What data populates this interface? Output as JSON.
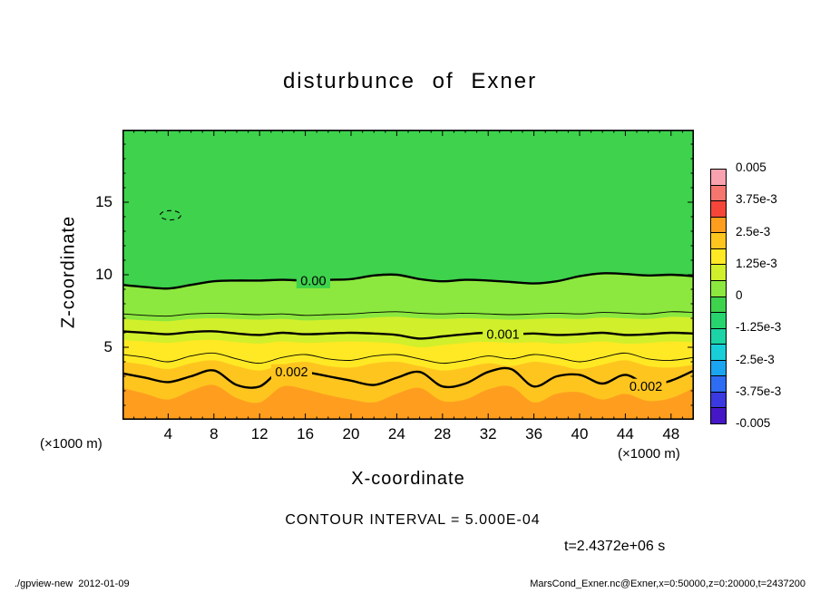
{
  "title": "disturbunce of Exner",
  "axes": {
    "x": {
      "label": "X-coordinate",
      "unit": "(×1000 m)",
      "ticks": [
        4,
        8,
        12,
        16,
        20,
        24,
        28,
        32,
        36,
        40,
        44,
        48
      ]
    },
    "y": {
      "label": "Z-coordinate",
      "unit": "(×1000 m)",
      "ticks": [
        5,
        10,
        15
      ]
    }
  },
  "annotations": {
    "contour_interval": "CONTOUR INTERVAL = 5.000E-04",
    "time": "t=2.4372e+06 s"
  },
  "footer": {
    "left": "./gpview-new  2012-01-09",
    "right": "MarsCond_Exner.nc@Exner,x=0:50000,z=0:20000,t=2437200"
  },
  "chart_data": {
    "type": "contour",
    "title": "disturbunce of Exner",
    "xlabel": "X-coordinate",
    "ylabel": "Z-coordinate",
    "x_unit": "×1000 m",
    "y_unit": "×1000 m",
    "xlim": [
      0,
      50
    ],
    "ylim": [
      0,
      20
    ],
    "x_ticks": [
      4,
      8,
      12,
      16,
      20,
      24,
      28,
      32,
      36,
      40,
      44,
      48
    ],
    "y_ticks": [
      5,
      10,
      15
    ],
    "contour_interval": 0.0005,
    "background_color": "#3ed24d",
    "x": [
      0,
      2,
      4,
      6,
      8,
      10,
      12,
      14,
      16,
      18,
      20,
      22,
      24,
      26,
      28,
      30,
      32,
      34,
      36,
      38,
      40,
      42,
      44,
      46,
      48,
      50
    ],
    "bands": [
      {
        "min_value": 0.0,
        "color": "#8ce83e",
        "z": [
          9.3,
          9.15,
          9.05,
          9.3,
          9.55,
          9.6,
          9.6,
          9.65,
          9.6,
          9.65,
          9.7,
          9.95,
          10.0,
          9.7,
          9.55,
          9.65,
          9.6,
          9.5,
          9.4,
          9.55,
          9.9,
          10.1,
          10.05,
          9.95,
          10.0,
          9.9
        ]
      },
      {
        "min_value": 0.000625,
        "color": "#d2ef2b",
        "z": [
          6.95,
          6.85,
          6.8,
          6.95,
          7.0,
          6.95,
          6.9,
          6.95,
          6.85,
          6.9,
          6.95,
          7.05,
          7.1,
          7.0,
          6.95,
          7.0,
          6.95,
          6.9,
          6.95,
          7.0,
          6.95,
          7.05,
          7.0,
          6.95,
          7.1,
          7.05
        ]
      },
      {
        "min_value": 0.00125,
        "color": "#ffe924",
        "z": [
          5.5,
          5.4,
          5.3,
          5.45,
          5.5,
          5.35,
          5.25,
          5.4,
          5.3,
          5.35,
          5.4,
          5.35,
          5.25,
          5.0,
          5.15,
          5.3,
          5.4,
          5.3,
          5.35,
          5.25,
          5.3,
          5.4,
          5.25,
          5.3,
          5.4,
          5.35
        ]
      },
      {
        "min_value": 0.001875,
        "color": "#ffc51f",
        "z": [
          4.0,
          3.8,
          3.5,
          3.9,
          4.1,
          3.7,
          3.4,
          3.8,
          4.0,
          3.7,
          3.6,
          3.9,
          4.0,
          3.7,
          3.4,
          3.6,
          3.9,
          3.7,
          4.0,
          3.8,
          3.5,
          3.8,
          4.1,
          3.7,
          3.6,
          3.8
        ]
      },
      {
        "min_value": 0.0025,
        "color": "#ff9e1e",
        "z": [
          2.2,
          1.8,
          1.4,
          2.0,
          2.4,
          1.5,
          1.2,
          2.3,
          2.1,
          1.7,
          1.4,
          1.2,
          1.8,
          2.2,
          1.3,
          1.4,
          2.1,
          2.3,
          1.2,
          1.8,
          1.9,
          1.4,
          1.8,
          1.3,
          1.5,
          2.2
        ]
      }
    ],
    "contours": [
      {
        "level": 0.0,
        "label": "0.00",
        "thick": true,
        "z": [
          9.3,
          9.15,
          9.05,
          9.3,
          9.55,
          9.6,
          9.6,
          9.65,
          9.6,
          9.65,
          9.7,
          9.95,
          10.0,
          9.7,
          9.55,
          9.65,
          9.6,
          9.5,
          9.4,
          9.55,
          9.9,
          10.1,
          10.05,
          9.95,
          10.0,
          9.9
        ]
      },
      {
        "level": 0.0005,
        "label": "",
        "thick": false,
        "z": [
          7.3,
          7.2,
          7.15,
          7.3,
          7.35,
          7.3,
          7.25,
          7.3,
          7.2,
          7.25,
          7.3,
          7.4,
          7.45,
          7.35,
          7.3,
          7.35,
          7.3,
          7.25,
          7.3,
          7.35,
          7.3,
          7.4,
          7.35,
          7.3,
          7.45,
          7.4
        ]
      },
      {
        "level": 0.001,
        "label": "0.001",
        "thick": true,
        "z": [
          6.1,
          6.0,
          5.9,
          6.05,
          6.1,
          5.95,
          5.85,
          6.0,
          5.9,
          5.95,
          6.0,
          5.95,
          5.85,
          5.6,
          5.75,
          5.9,
          6.0,
          5.9,
          5.95,
          5.85,
          5.9,
          6.0,
          5.85,
          5.9,
          6.0,
          5.95
        ]
      },
      {
        "level": 0.0015,
        "label": "",
        "thick": false,
        "z": [
          4.5,
          4.3,
          4.0,
          4.4,
          4.6,
          4.2,
          3.9,
          4.3,
          4.5,
          4.2,
          4.1,
          4.4,
          4.5,
          4.2,
          3.9,
          4.1,
          4.4,
          4.2,
          4.5,
          4.3,
          4.0,
          4.3,
          4.6,
          4.2,
          4.1,
          4.3
        ]
      },
      {
        "level": 0.002,
        "label": "0.002",
        "thick": true,
        "z": [
          3.2,
          2.9,
          2.6,
          3.0,
          3.4,
          2.4,
          2.3,
          3.5,
          3.3,
          3.0,
          2.7,
          2.4,
          2.9,
          3.3,
          2.3,
          2.5,
          3.3,
          3.5,
          2.3,
          3.0,
          3.1,
          2.5,
          3.1,
          2.4,
          2.7,
          3.4
        ]
      }
    ],
    "negative_contour": {
      "level": -0.0005,
      "x": 4.2,
      "z": 14.1,
      "rx_km": 0.9,
      "ry_km": 0.32,
      "dashed": true
    },
    "contour_labels": [
      {
        "text": "0.00",
        "x": 16.7,
        "z": 9.6,
        "bg": "#3ed24d"
      },
      {
        "text": "0.001",
        "x": 33.3,
        "z": 5.9,
        "bg": "#d2ef2b"
      },
      {
        "text": "0.002",
        "x": 14.8,
        "z": 3.3,
        "bg": "#ffc51f"
      },
      {
        "text": "0.002",
        "x": 45.8,
        "z": 2.3,
        "bg": "#ffc51f"
      }
    ],
    "colorbar": {
      "labels": [
        "0.005",
        "3.75e-3",
        "2.5e-3",
        "1.25e-3",
        "0",
        "-1.25e-3",
        "-2.5e-3",
        "-3.75e-3",
        "-0.005"
      ],
      "colors": [
        "#f7a2ae",
        "#f5756f",
        "#f6463a",
        "#ff9e1e",
        "#ffc51f",
        "#ffe924",
        "#d2ef2b",
        "#8ce83e",
        "#3ed24d",
        "#27d46e",
        "#1cd4a5",
        "#18cfd9",
        "#1ba4f0",
        "#2e6cf4",
        "#3a3ae0",
        "#4617c6"
      ]
    }
  }
}
